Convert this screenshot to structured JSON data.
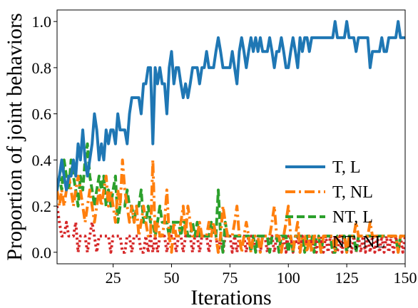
{
  "chart_data": {
    "type": "line",
    "xlabel": "Iterations",
    "ylabel": "Proportion of joint behaviors",
    "xlim": [
      1,
      150
    ],
    "ylim": [
      -0.05,
      1.05
    ],
    "xticks": [
      25,
      50,
      75,
      100,
      125,
      150
    ],
    "yticks": [
      0.0,
      0.2,
      0.4,
      0.6,
      0.8,
      1.0
    ],
    "xtick_labels": [
      "25",
      "50",
      "75",
      "100",
      "125",
      "150"
    ],
    "ytick_labels": [
      "0.0",
      "0.2",
      "0.4",
      "0.6",
      "0.8",
      "1.0"
    ],
    "grid": false,
    "legend_position": "center-right",
    "series": [
      {
        "name": "T, L",
        "color": "#1f77b4",
        "style": "solid",
        "y": [
          0.27,
          0.33,
          0.4,
          0.33,
          0.27,
          0.33,
          0.33,
          0.4,
          0.33,
          0.47,
          0.4,
          0.53,
          0.4,
          0.33,
          0.4,
          0.47,
          0.6,
          0.53,
          0.4,
          0.47,
          0.4,
          0.53,
          0.47,
          0.53,
          0.53,
          0.47,
          0.6,
          0.53,
          0.53,
          0.53,
          0.47,
          0.6,
          0.67,
          0.67,
          0.67,
          0.67,
          0.6,
          0.73,
          0.73,
          0.8,
          0.8,
          0.47,
          0.8,
          0.73,
          0.8,
          0.73,
          0.73,
          0.6,
          0.8,
          0.87,
          0.73,
          0.8,
          0.8,
          0.73,
          0.67,
          0.73,
          0.67,
          0.73,
          0.8,
          0.8,
          0.8,
          0.73,
          0.8,
          0.8,
          0.87,
          0.8,
          0.8,
          0.8,
          0.87,
          0.93,
          0.87,
          0.8,
          0.8,
          0.8,
          0.8,
          0.87,
          0.8,
          0.73,
          0.87,
          0.93,
          0.87,
          0.8,
          0.87,
          0.93,
          0.87,
          0.93,
          0.87,
          0.93,
          0.87,
          0.87,
          0.87,
          0.93,
          0.87,
          0.8,
          0.87,
          0.87,
          0.93,
          0.87,
          0.8,
          0.8,
          0.87,
          0.93,
          0.87,
          0.8,
          0.93,
          0.87,
          0.93,
          0.93,
          0.87,
          0.93,
          0.93,
          0.93,
          0.93,
          0.93,
          0.93,
          0.93,
          0.93,
          0.93,
          0.93,
          1.0,
          0.93,
          0.93,
          0.93,
          0.93,
          1.0,
          0.93,
          0.93,
          0.93,
          0.87,
          0.93,
          0.93,
          0.93,
          0.93,
          0.93,
          0.8,
          0.87,
          0.87,
          0.87,
          0.87,
          0.93,
          0.87,
          0.87,
          0.93,
          0.93,
          0.93,
          0.93,
          1.0,
          0.93,
          0.93,
          0.93
        ]
      },
      {
        "name": "T, NL",
        "color": "#ff7f0e",
        "style": "dashdot",
        "y": [
          0.27,
          0.2,
          0.27,
          0.2,
          0.27,
          0.33,
          0.27,
          0.2,
          0.27,
          0.33,
          0.27,
          0.2,
          0.13,
          0.2,
          0.27,
          0.2,
          0.13,
          0.2,
          0.27,
          0.2,
          0.27,
          0.33,
          0.2,
          0.27,
          0.2,
          0.13,
          0.27,
          0.2,
          0.4,
          0.27,
          0.2,
          0.13,
          0.2,
          0.13,
          0.2,
          0.07,
          0.13,
          0.2,
          0.13,
          0.07,
          0.07,
          0.4,
          0.07,
          0.13,
          0.07,
          0.07,
          0.13,
          0.27,
          0.07,
          0.0,
          0.13,
          0.07,
          0.07,
          0.13,
          0.2,
          0.07,
          0.2,
          0.13,
          0.07,
          0.07,
          0.07,
          0.13,
          0.07,
          0.07,
          0.07,
          0.13,
          0.07,
          0.13,
          0.07,
          0.0,
          0.07,
          0.2,
          0.13,
          0.07,
          0.07,
          0.07,
          0.13,
          0.2,
          0.07,
          0.0,
          0.07,
          0.13,
          0.07,
          0.0,
          0.07,
          0.07,
          0.07,
          0.0,
          0.07,
          0.07,
          0.07,
          0.07,
          0.13,
          0.2,
          0.07,
          0.07,
          0.0,
          0.07,
          0.13,
          0.2,
          0.07,
          0.0,
          0.07,
          0.13,
          0.0,
          0.07,
          0.07,
          0.0,
          0.07,
          0.0,
          0.07,
          0.07,
          0.07,
          0.0,
          0.07,
          0.07,
          0.07,
          0.07,
          0.07,
          0.0,
          0.07,
          0.07,
          0.07,
          0.07,
          0.0,
          0.07,
          0.07,
          0.07,
          0.13,
          0.07,
          0.07,
          0.07,
          0.07,
          0.07,
          0.13,
          0.07,
          0.07,
          0.07,
          0.07,
          0.07,
          0.07,
          0.07,
          0.07,
          0.07,
          0.07,
          0.07,
          0.0,
          0.07,
          0.07,
          0.07
        ]
      },
      {
        "name": "NT, L",
        "color": "#2ca02c",
        "style": "dashed",
        "y": [
          0.27,
          0.33,
          0.27,
          0.4,
          0.33,
          0.27,
          0.4,
          0.33,
          0.27,
          0.2,
          0.33,
          0.27,
          0.4,
          0.47,
          0.33,
          0.27,
          0.2,
          0.27,
          0.33,
          0.27,
          0.33,
          0.2,
          0.27,
          0.2,
          0.27,
          0.33,
          0.13,
          0.2,
          0.2,
          0.2,
          0.27,
          0.2,
          0.2,
          0.13,
          0.2,
          0.2,
          0.27,
          0.13,
          0.13,
          0.2,
          0.13,
          0.13,
          0.07,
          0.13,
          0.2,
          0.13,
          0.13,
          0.13,
          0.07,
          0.13,
          0.13,
          0.13,
          0.13,
          0.07,
          0.13,
          0.13,
          0.07,
          0.07,
          0.13,
          0.07,
          0.13,
          0.07,
          0.07,
          0.07,
          0.07,
          0.07,
          0.13,
          0.07,
          0.07,
          0.27,
          0.07,
          0.0,
          0.13,
          0.07,
          0.07,
          0.07,
          0.07,
          0.07,
          0.07,
          0.07,
          0.07,
          0.07,
          0.07,
          0.0,
          0.07,
          0.0,
          0.07,
          0.07,
          0.07,
          0.07,
          0.07,
          0.0,
          0.07,
          0.07,
          0.07,
          0.0,
          0.07,
          0.07,
          0.07,
          0.0,
          0.07,
          0.0,
          0.07,
          0.07,
          0.07,
          0.07,
          0.0,
          0.07,
          0.07,
          0.07,
          0.0,
          0.07,
          0.07,
          0.0,
          0.07,
          0.07,
          0.07,
          0.07,
          0.0,
          0.0,
          0.07,
          0.07,
          0.07,
          0.07,
          0.0,
          0.07,
          0.07,
          0.07,
          0.0,
          0.07,
          0.07,
          0.07,
          0.07,
          0.07,
          0.07,
          0.07,
          0.07,
          0.07,
          0.07,
          0.07,
          0.07,
          0.07,
          0.07,
          0.07,
          0.07,
          0.07,
          0.0,
          0.07,
          0.07,
          0.07
        ]
      },
      {
        "name": "NT, NL",
        "color": "#d62728",
        "style": "dotted",
        "y": [
          0.2,
          0.13,
          0.07,
          0.07,
          0.13,
          0.07,
          0.07,
          0.07,
          0.13,
          0.0,
          0.07,
          0.07,
          0.07,
          0.0,
          0.07,
          0.13,
          0.07,
          0.0,
          0.07,
          0.07,
          0.07,
          0.07,
          0.07,
          0.0,
          0.07,
          0.07,
          0.07,
          0.07,
          0.0,
          0.0,
          0.07,
          0.07,
          0.0,
          0.07,
          0.07,
          0.07,
          0.0,
          0.0,
          0.07,
          0.0,
          0.07,
          0.0,
          0.07,
          0.0,
          0.07,
          0.07,
          0.07,
          0.0,
          0.07,
          0.07,
          0.07,
          0.0,
          0.07,
          0.07,
          0.0,
          0.07,
          0.07,
          0.07,
          0.0,
          0.07,
          0.07,
          0.0,
          0.07,
          0.07,
          0.07,
          0.0,
          0.07,
          0.07,
          0.07,
          0.0,
          0.07,
          0.0,
          0.07,
          0.07,
          0.07,
          0.0,
          0.07,
          0.0,
          0.07,
          0.07,
          0.07,
          0.0,
          0.07,
          0.07,
          0.07,
          0.0,
          0.07,
          0.0,
          0.07,
          0.07,
          0.0,
          0.07,
          0.07,
          0.0,
          0.07,
          0.07,
          0.0,
          0.07,
          0.0,
          0.07,
          0.07,
          0.0,
          0.07,
          0.07,
          0.0,
          0.07,
          0.0,
          0.07,
          0.07,
          0.0,
          0.07,
          0.0,
          0.07,
          0.07,
          0.0,
          0.07,
          0.0,
          0.07,
          0.0,
          0.07,
          0.0,
          0.07,
          0.0,
          0.07,
          0.0,
          0.07,
          0.0,
          0.07,
          0.0,
          0.07,
          0.0,
          0.07,
          0.0,
          0.07,
          0.0,
          0.07,
          0.0,
          0.07,
          0.0,
          0.07,
          0.0,
          0.07,
          0.0,
          0.07,
          0.0,
          0.07,
          0.0,
          0.07,
          0.0,
          0.07
        ]
      }
    ]
  }
}
